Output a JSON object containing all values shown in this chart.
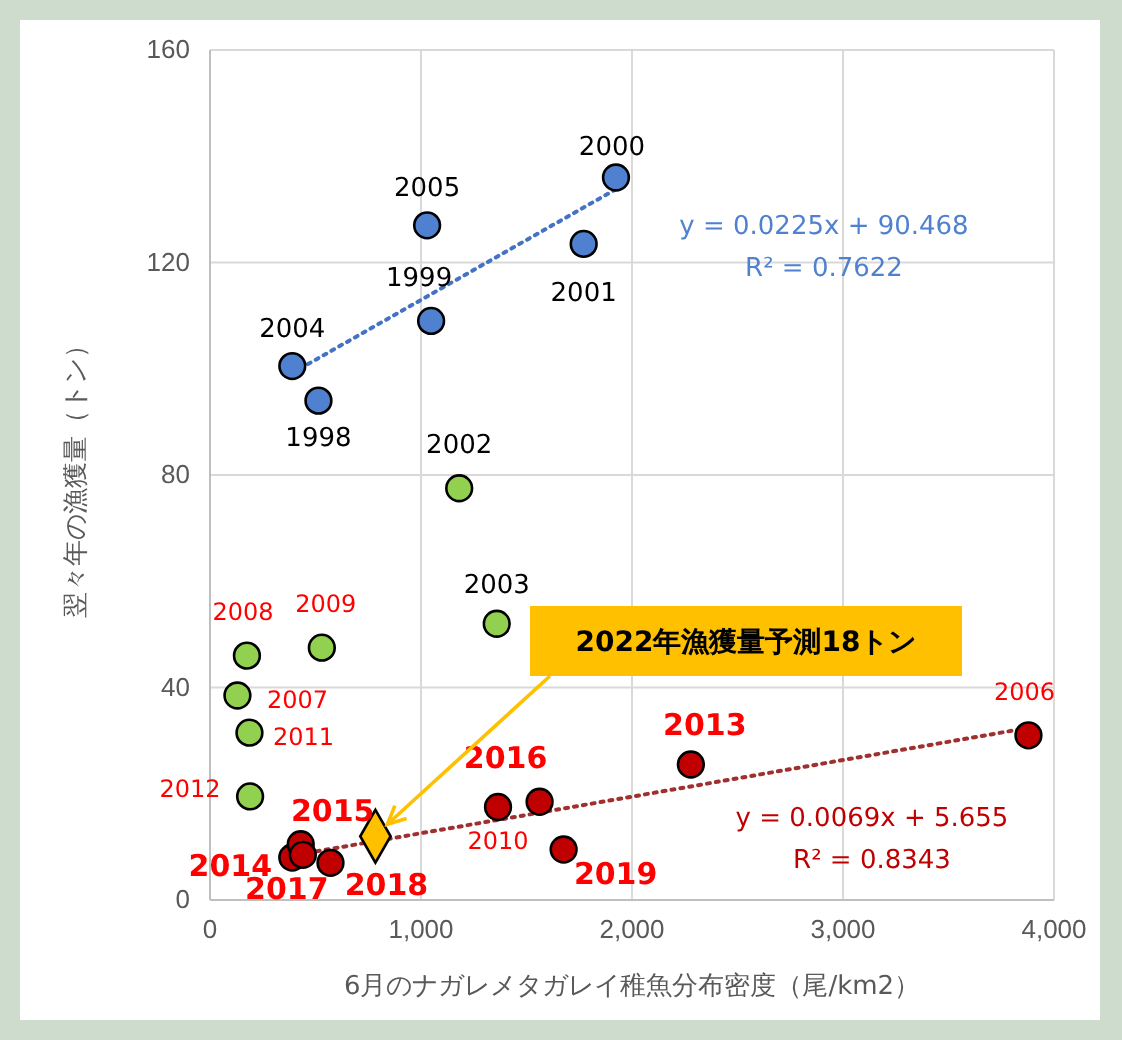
{
  "chart_data": {
    "type": "scatter",
    "xlabel": "6月のナガレメタガレイ稚魚分布密度（尾/km2）",
    "ylabel": "翌々年の漁獲量（トン）",
    "xlim": [
      0,
      4000
    ],
    "xticks": [
      0,
      {
        "value": 1000,
        "label": "1,000"
      },
      {
        "value": 2000,
        "label": "2,000"
      },
      {
        "value": 3000,
        "label": "3,000"
      },
      {
        "value": 4000,
        "label": "4,000"
      }
    ],
    "ylim": [
      0,
      160
    ],
    "yticks": [
      0,
      40,
      80,
      120,
      160
    ],
    "grid": true,
    "marker": "circle",
    "series": [
      {
        "color": "#4f81d0",
        "x": [
          514,
          1048,
          1924,
          1771,
          390,
          1029
        ],
        "values": [
          94,
          109,
          136,
          123.5,
          100.5,
          127
        ]
      },
      {
        "color": "#92d050",
        "x": [
          1181,
          1359,
          130,
          175,
          530,
          187,
          190
        ],
        "values": [
          77.5,
          52,
          38.5,
          46,
          47.5,
          31.5,
          19.5
        ]
      },
      {
        "color": "#c00000",
        "x": [
          390,
          430,
          440,
          571,
          1562,
          2279,
          1676,
          1365,
          3879
        ],
        "values": [
          8,
          10.5,
          8.5,
          7,
          18.5,
          25.5,
          9.5,
          17.5,
          31
        ]
      },
      {
        "color": "#ffc000",
        "marker": "diamond",
        "x": [
          784
        ],
        "values": [
          12
        ]
      },
      {
        "type": "line",
        "color": "#4472c4",
        "line_style": "dotted",
        "marker": "none",
        "x": [
          390,
          1924
        ],
        "values": [
          99.2,
          133.8
        ]
      },
      {
        "type": "line",
        "color": "#a03030",
        "line_style": "dotted",
        "marker": "none",
        "x": [
          380,
          3879
        ],
        "values": [
          8.3,
          32.4
        ]
      }
    ],
    "annotations": [
      {
        "text": "1998",
        "x": 514,
        "y": 94
      },
      {
        "text": "1999",
        "x": 1048,
        "y": 109
      },
      {
        "text": "2000",
        "x": 1924,
        "y": 136
      },
      {
        "text": "2001",
        "x": 1771,
        "y": 123.5
      },
      {
        "text": "2004",
        "x": 390,
        "y": 100.5
      },
      {
        "text": "2005",
        "x": 1029,
        "y": 127
      },
      {
        "text": "2002",
        "x": 1181,
        "y": 77.5
      },
      {
        "text": "2003",
        "x": 1359,
        "y": 52
      },
      {
        "text": "2007",
        "x": 130,
        "y": 38.5
      },
      {
        "text": "2008",
        "x": 175,
        "y": 46
      },
      {
        "text": "2009",
        "x": 530,
        "y": 47.5
      },
      {
        "text": "2011",
        "x": 187,
        "y": 31.5
      },
      {
        "text": "2012",
        "x": 190,
        "y": 19.5
      },
      {
        "text": "2014",
        "x": 390,
        "y": 8
      },
      {
        "text": "2015",
        "x": 430,
        "y": 10.5
      },
      {
        "text": "2017",
        "x": 440,
        "y": 8.5
      },
      {
        "text": "2018",
        "x": 571,
        "y": 7
      },
      {
        "text": "2016",
        "x": 1562,
        "y": 18.5
      },
      {
        "text": "2013",
        "x": 2279,
        "y": 25.5
      },
      {
        "text": "2019",
        "x": 1676,
        "y": 9.5
      },
      {
        "text": "2010",
        "x": 1365,
        "y": 17.5
      },
      {
        "text": "2006",
        "x": 3879,
        "y": 31
      },
      {
        "text": "2022年漁獲量予測18トン",
        "x": 784,
        "y": 12
      },
      "y = 0.0225x + 90.468",
      "R² = 0.7622",
      "y = 0.0069x + 5.655",
      "R² = 0.8343"
    ]
  }
}
